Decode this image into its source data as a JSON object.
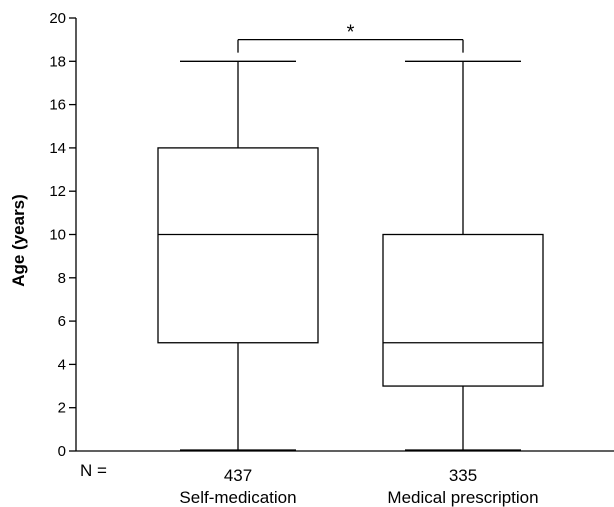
{
  "chart_data": {
    "type": "box",
    "ylabel": "Age (years)",
    "ylim": [
      0,
      20
    ],
    "yticks": [
      0,
      2,
      4,
      6,
      8,
      10,
      12,
      14,
      16,
      18,
      20
    ],
    "n_prefix": "N =",
    "categories": [
      "Self-medication",
      "Medical prescription"
    ],
    "boxes": [
      {
        "category": "Self-medication",
        "n": "437",
        "min": 0,
        "q1": 5,
        "median": 10,
        "q3": 14,
        "max": 18
      },
      {
        "category": "Medical prescription",
        "n": "335",
        "min": 0,
        "q1": 3,
        "median": 5,
        "q3": 10,
        "max": 18
      }
    ],
    "significance": {
      "between": [
        0,
        1
      ],
      "label": "*",
      "y": 19
    },
    "grid": false,
    "legend": "none"
  }
}
